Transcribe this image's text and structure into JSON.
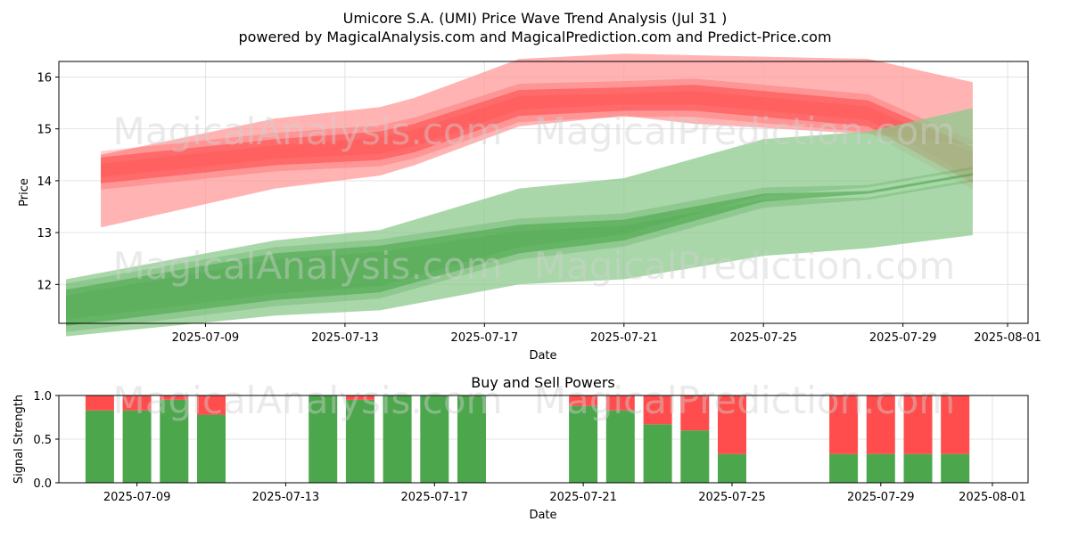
{
  "title_line1": "Umicore S.A. (UMI) Price Wave Trend Analysis (Jul 31 )",
  "title_line2": "powered by MagicalAnalysis.com and MagicalPrediction.com and Predict-Price.com",
  "watermarks": [
    "MagicalAnalysis.com",
    "MagicalPrediction.com"
  ],
  "colors": {
    "sell": "#ff4d4d",
    "buy": "#4ca64c",
    "sell_band": "#ff9999",
    "buy_band": "#8cc98c"
  },
  "chart_data": [
    {
      "type": "area",
      "title": "",
      "xlabel": "Date",
      "ylabel": "Price",
      "xlim": [
        "2025-07-05",
        "2025-08-01"
      ],
      "ylim": [
        11.25,
        16.3
      ],
      "x_ticks": [
        "2025-07-09",
        "2025-07-13",
        "2025-07-17",
        "2025-07-21",
        "2025-07-25",
        "2025-07-29",
        "2025-08-01"
      ],
      "y_ticks": [
        12,
        13,
        14,
        15,
        16
      ],
      "grid": true,
      "series": [
        {
          "color": "red",
          "dates": [
            "2025-07-06",
            "2025-07-11",
            "2025-07-14",
            "2025-07-15",
            "2025-07-18",
            "2025-07-21",
            "2025-07-23",
            "2025-07-28",
            "2025-07-31"
          ],
          "upper": [
            14.5,
            15.2,
            15.42,
            15.6,
            16.35,
            16.45,
            16.42,
            16.35,
            15.9
          ],
          "lower": [
            13.1,
            13.85,
            14.1,
            14.3,
            15.05,
            15.25,
            15.1,
            14.9,
            14.7
          ],
          "core_upper": [
            14.45,
            14.8,
            14.95,
            15.1,
            15.75,
            15.8,
            15.85,
            15.55,
            14.65
          ],
          "core_lower": [
            13.95,
            14.3,
            14.4,
            14.55,
            15.25,
            15.35,
            15.35,
            15.05,
            13.95
          ]
        },
        {
          "color": "green",
          "dates": [
            "2025-07-05",
            "2025-07-11",
            "2025-07-14",
            "2025-07-18",
            "2025-07-21",
            "2025-07-25",
            "2025-07-28",
            "2025-07-31"
          ],
          "upper": [
            12.1,
            12.85,
            13.05,
            13.85,
            14.05,
            14.8,
            14.95,
            15.4
          ],
          "lower": [
            11.0,
            11.4,
            11.5,
            12.0,
            12.1,
            12.55,
            12.7,
            12.95
          ],
          "core_upper": [
            11.9,
            12.6,
            12.75,
            13.15,
            13.25,
            13.75,
            13.8,
            14.15
          ],
          "core_lower": [
            11.2,
            11.7,
            11.85,
            12.6,
            12.85,
            13.6,
            13.75,
            14.1
          ]
        }
      ]
    },
    {
      "type": "bar",
      "title": "Buy and Sell Powers",
      "xlabel": "Date",
      "ylabel": "Signal Strength",
      "ylim": [
        0,
        1
      ],
      "y_ticks": [
        "0.0",
        "0.5",
        "1.0"
      ],
      "x_ticks": [
        "2025-07-09",
        "2025-07-13",
        "2025-07-17",
        "2025-07-21",
        "2025-07-25",
        "2025-07-29",
        "2025-08-01"
      ],
      "grid": true,
      "dates": [
        "2025-07-08",
        "2025-07-09",
        "2025-07-10",
        "2025-07-11",
        "2025-07-14",
        "2025-07-15",
        "2025-07-16",
        "2025-07-17",
        "2025-07-18",
        "2025-07-21",
        "2025-07-22",
        "2025-07-23",
        "2025-07-24",
        "2025-07-25",
        "2025-07-28",
        "2025-07-29",
        "2025-07-30",
        "2025-07-31"
      ],
      "buy": [
        0.83,
        0.83,
        0.95,
        0.78,
        1.0,
        0.95,
        1.0,
        1.0,
        1.0,
        0.88,
        0.83,
        0.67,
        0.6,
        0.33,
        0.33,
        0.33,
        0.33,
        0.33
      ],
      "sell": [
        0.17,
        0.17,
        0.05,
        0.22,
        0.0,
        0.05,
        0.0,
        0.0,
        0.0,
        0.12,
        0.17,
        0.33,
        0.4,
        0.67,
        0.67,
        0.67,
        0.67,
        0.67
      ]
    }
  ]
}
